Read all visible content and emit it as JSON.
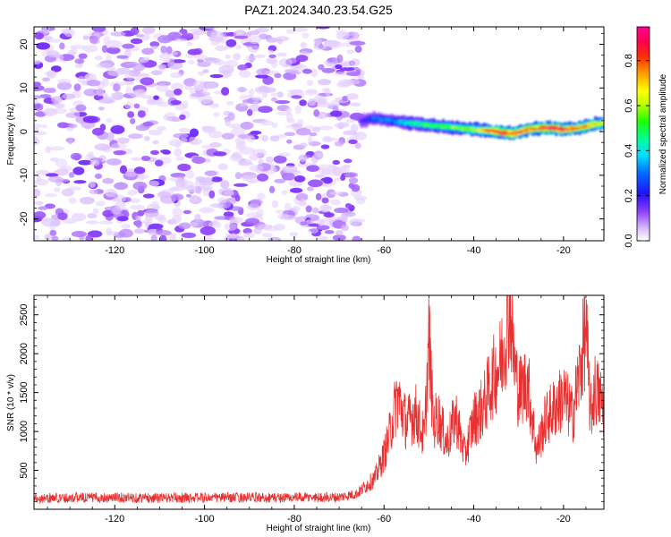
{
  "title": "PAZ1.2024.340.23.54.G25",
  "chart_data": [
    {
      "type": "heatmap",
      "xlabel": "Height of straight line (km)",
      "ylabel": "Frequency (Hz)",
      "xlim": [
        -138,
        -11
      ],
      "ylim": [
        -25,
        24
      ],
      "x_ticks": [
        -120,
        -100,
        -80,
        -60,
        -40,
        -20
      ],
      "y_ticks": [
        -20,
        -10,
        0,
        10,
        20
      ],
      "colorbar": {
        "label": "Normalized spectral amplitude",
        "range": [
          0,
          0.95
        ],
        "ticks": [
          0.0,
          0.2,
          0.4,
          0.6,
          0.8
        ],
        "tick_labels": [
          "0.0",
          "0.2",
          "0.4",
          "0.6",
          "0.8"
        ],
        "colormap": "rainbow (white → violet → blue → cyan → green → yellow → orange → red → pink)"
      },
      "noise_region": {
        "x_range": [
          -138,
          -65
        ],
        "freq_range": [
          -25,
          24
        ],
        "amplitude_range": [
          0.0,
          0.15
        ]
      },
      "signal_track": {
        "x": [
          -65,
          -62,
          -58,
          -55,
          -50,
          -45,
          -40,
          -37,
          -35,
          -33,
          -31,
          -28,
          -25,
          -22,
          -20,
          -17,
          -14,
          -11
        ],
        "frequency": [
          2.5,
          3.0,
          2.5,
          2.0,
          1.5,
          1.0,
          0.5,
          0.3,
          0.0,
          -0.3,
          -0.5,
          0.5,
          0.8,
          0.8,
          0.5,
          0.8,
          1.5,
          2.0
        ],
        "peak_amplitude": [
          0.18,
          0.3,
          0.32,
          0.42,
          0.5,
          0.55,
          0.62,
          0.75,
          0.8,
          0.82,
          0.85,
          0.78,
          0.8,
          0.9,
          0.88,
          0.78,
          0.72,
          0.6
        ]
      }
    },
    {
      "type": "line",
      "xlabel": "Height of straight line (km)",
      "ylabel": "SNR (10 * v/v)",
      "xlim": [
        -138,
        -11
      ],
      "ylim": [
        0,
        2750
      ],
      "x_ticks": [
        -120,
        -100,
        -80,
        -60,
        -40,
        -20
      ],
      "y_ticks": [
        500,
        1000,
        1500,
        2000,
        2500
      ],
      "series": [
        {
          "color": "#e83030",
          "x": [
            -138,
            -130,
            -120,
            -110,
            -100,
            -90,
            -80,
            -70,
            -66,
            -64,
            -62,
            -60,
            -59,
            -57,
            -55,
            -53,
            -51,
            -50,
            -49,
            -48,
            -46,
            -44,
            -42,
            -40,
            -38,
            -36,
            -34,
            -33,
            -32,
            -31,
            -30,
            -28,
            -26,
            -24,
            -22,
            -20,
            -18,
            -16,
            -15,
            -14,
            -13,
            -12,
            -11
          ],
          "y": [
            140,
            150,
            150,
            145,
            150,
            150,
            150,
            155,
            200,
            300,
            400,
            700,
            900,
            1450,
            1100,
            1250,
            900,
            2200,
            1100,
            1200,
            850,
            1200,
            700,
            1150,
            1300,
            1650,
            1900,
            2200,
            2720,
            1900,
            1500,
            1650,
            750,
            1150,
            1300,
            1450,
            1200,
            1900,
            2350,
            1200,
            1550,
            1450,
            1300
          ]
        }
      ]
    }
  ]
}
